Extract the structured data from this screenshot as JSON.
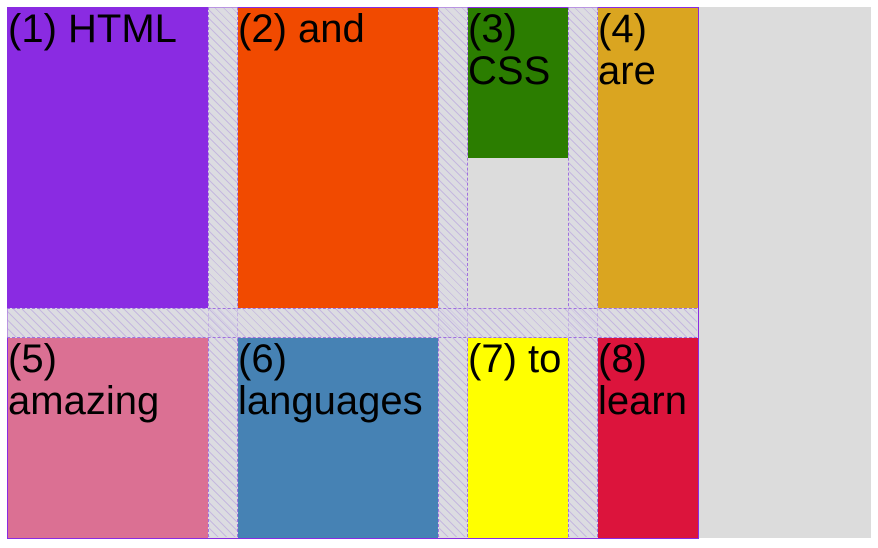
{
  "grid": {
    "items": [
      {
        "label": "(1) HTML",
        "color": "#8a2be2"
      },
      {
        "label": "(2) and",
        "color": "#f14a00"
      },
      {
        "label": "(3) CSS",
        "color": "#2b7d00"
      },
      {
        "label": "(4) are",
        "color": "#daa520"
      },
      {
        "label": "(5) amazing",
        "color": "#db7093"
      },
      {
        "label": "(6) languages",
        "color": "#4682b4"
      },
      {
        "label": "(7) to",
        "color": "#ffff00"
      },
      {
        "label": "(8) learn",
        "color": "#dc143c"
      }
    ]
  },
  "colors": {
    "page_background": "#dcdcdc",
    "grid_overlay": "#8a2be2"
  }
}
